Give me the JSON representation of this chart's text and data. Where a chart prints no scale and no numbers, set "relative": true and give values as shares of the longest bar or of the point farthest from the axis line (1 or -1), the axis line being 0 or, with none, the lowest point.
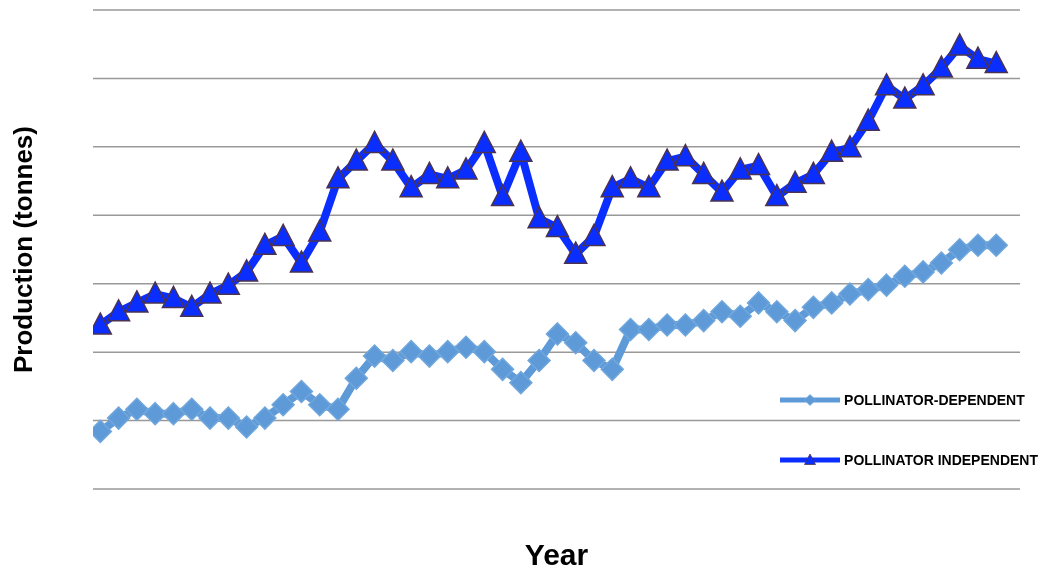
{
  "chart_data": {
    "type": "line",
    "relative": true,
    "xlabel": "Year",
    "ylabel": "Production (tonnes)",
    "grid": "y",
    "legend": "bottom right",
    "tick_labels": false,
    "categories": [
      null,
      null,
      null,
      null,
      null,
      null,
      null,
      null,
      null,
      null,
      null,
      null,
      null,
      null,
      null,
      null,
      null,
      null,
      null,
      null,
      null,
      null,
      null,
      null,
      null,
      null,
      null,
      null,
      null,
      null,
      null,
      null,
      null,
      null,
      null,
      null,
      null,
      null,
      null,
      null,
      null,
      null,
      null,
      null,
      null,
      null,
      null,
      null,
      null,
      null
    ],
    "series": [
      {
        "name": "POLLINATOR-DEPENDENT",
        "color": "#5f9ad8",
        "marker": "diamond",
        "values": [
          0.13,
          0.16,
          0.18,
          0.17,
          0.17,
          0.18,
          0.16,
          0.16,
          0.14,
          0.16,
          0.19,
          0.22,
          0.19,
          0.18,
          0.25,
          0.3,
          0.29,
          0.31,
          0.3,
          0.31,
          0.32,
          0.31,
          0.27,
          0.24,
          0.29,
          0.35,
          0.33,
          0.29,
          0.27,
          0.36,
          0.36,
          0.37,
          0.37,
          0.38,
          0.4,
          0.39,
          0.42,
          0.4,
          0.38,
          0.41,
          0.42,
          0.44,
          0.45,
          0.46,
          0.48,
          0.49,
          0.51,
          0.54,
          0.55,
          0.55
        ]
      },
      {
        "name": "POLLINATOR INDEPENDENT",
        "color": "#0a2eff",
        "marker": "triangle",
        "values": [
          0.37,
          0.4,
          0.42,
          0.44,
          0.43,
          0.41,
          0.44,
          0.46,
          0.49,
          0.55,
          0.57,
          0.51,
          0.58,
          0.7,
          0.74,
          0.78,
          0.74,
          0.68,
          0.71,
          0.7,
          0.72,
          0.78,
          0.66,
          0.76,
          0.61,
          0.59,
          0.53,
          0.57,
          0.68,
          0.7,
          0.68,
          0.74,
          0.75,
          0.71,
          0.67,
          0.72,
          0.73,
          0.66,
          0.69,
          0.71,
          0.76,
          0.77,
          0.83,
          0.91,
          0.88,
          0.91,
          0.95,
          1,
          0.97,
          0.96
        ]
      }
    ]
  }
}
